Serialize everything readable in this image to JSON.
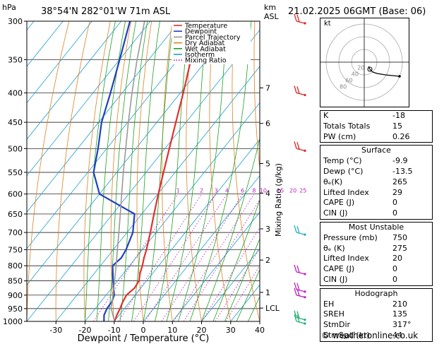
{
  "header": {
    "unit_left": "hPa",
    "location": "38°54'N 282°01'W 71m ASL",
    "unit_km": "km",
    "unit_asl": "ASL",
    "datetime": "21.02.2025 06GMT (Base: 06)"
  },
  "axes": {
    "xlabel": "Dewpoint / Temperature (°C)",
    "mixing_label": "Mixing Ratio (g/kg)"
  },
  "legend": [
    {
      "label": "Temperature",
      "color": "#e03030",
      "style": "solid"
    },
    {
      "label": "Dewpoint",
      "color": "#2040c0",
      "style": "solid"
    },
    {
      "label": "Parcel Trajectory",
      "color": "#999999",
      "style": "solid"
    },
    {
      "label": "Dry Adiabat",
      "color": "#e08020",
      "style": "solid"
    },
    {
      "label": "Wet Adiabat",
      "color": "#20a020",
      "style": "solid"
    },
    {
      "label": "Isotherm",
      "color": "#20a0d0",
      "style": "solid"
    },
    {
      "label": "Mixing Ratio",
      "color": "#c020c0",
      "style": "dotted"
    }
  ],
  "chart_data": {
    "type": "line",
    "title": "",
    "xlabel": "Dewpoint / Temperature (°C)",
    "ylabel": "hPa",
    "xlim": [
      -40,
      40
    ],
    "pressure_range": [
      1000,
      300
    ],
    "pressure_ticks": [
      300,
      350,
      400,
      450,
      500,
      550,
      600,
      650,
      700,
      750,
      800,
      850,
      900,
      950,
      1000
    ],
    "temp_ticks": [
      -30,
      -20,
      -10,
      0,
      10,
      20,
      30,
      40
    ],
    "km_ticks": [
      {
        "label": "7",
        "p": 392
      },
      {
        "label": "6",
        "p": 452
      },
      {
        "label": "5",
        "p": 531
      },
      {
        "label": "4",
        "p": 598
      },
      {
        "label": "3",
        "p": 690
      },
      {
        "label": "2",
        "p": 782
      },
      {
        "label": "1",
        "p": 890
      },
      {
        "label": "LCL",
        "p": 948
      }
    ],
    "mixing_ratio_labels": [
      "1",
      "2",
      "3",
      "4",
      "6",
      "8",
      "10",
      "15",
      "20",
      "25"
    ],
    "mixing_ratio_values": [
      1,
      2,
      3,
      4,
      6,
      8,
      10,
      15,
      20,
      25
    ],
    "series": [
      {
        "name": "Temperature",
        "color": "#e03030",
        "points": [
          [
            1000,
            -9.9
          ],
          [
            975,
            -10.8
          ],
          [
            950,
            -11.5
          ],
          [
            925,
            -12.4
          ],
          [
            900,
            -13.0
          ],
          [
            875,
            -12.2
          ],
          [
            850,
            -12.6
          ],
          [
            825,
            -14.3
          ],
          [
            800,
            -15.6
          ],
          [
            775,
            -17.2
          ],
          [
            750,
            -18.6
          ],
          [
            700,
            -22.0
          ],
          [
            650,
            -25.8
          ],
          [
            600,
            -29.8
          ],
          [
            550,
            -34.0
          ],
          [
            500,
            -38.5
          ],
          [
            450,
            -43.5
          ],
          [
            400,
            -49.0
          ],
          [
            350,
            -55.5
          ],
          [
            300,
            -62.5
          ]
        ]
      },
      {
        "name": "Dewpoint",
        "color": "#2040c0",
        "points": [
          [
            1000,
            -13.5
          ],
          [
            975,
            -15.2
          ],
          [
            950,
            -16.0
          ],
          [
            925,
            -16.2
          ],
          [
            900,
            -17.2
          ],
          [
            850,
            -21.5
          ],
          [
            800,
            -25.8
          ],
          [
            775,
            -25.0
          ],
          [
            750,
            -25.6
          ],
          [
            700,
            -28.0
          ],
          [
            650,
            -32.5
          ],
          [
            600,
            -50.0
          ],
          [
            550,
            -58.0
          ],
          [
            500,
            -63.0
          ],
          [
            450,
            -69.0
          ],
          [
            400,
            -74.0
          ],
          [
            350,
            -80.0
          ],
          [
            300,
            -87.0
          ]
        ]
      },
      {
        "name": "Parcel Trajectory",
        "color": "#999999",
        "points": [
          [
            1000,
            -9.9
          ],
          [
            948,
            -14.7
          ],
          [
            900,
            -17.6
          ],
          [
            850,
            -21.0
          ],
          [
            800,
            -24.6
          ],
          [
            750,
            -28.6
          ],
          [
            700,
            -32.8
          ],
          [
            650,
            -37.4
          ],
          [
            600,
            -42.4
          ],
          [
            550,
            -47.8
          ],
          [
            500,
            -53.5
          ],
          [
            450,
            -59.8
          ],
          [
            400,
            -66.6
          ],
          [
            350,
            -74.0
          ],
          [
            300,
            -82.0
          ]
        ]
      }
    ],
    "wind_barbs": [
      {
        "p": 1000,
        "color": "#20b070"
      },
      {
        "p": 985,
        "color": "#20b070"
      },
      {
        "p": 900,
        "color": "#c020c0"
      },
      {
        "p": 880,
        "color": "#c020c0"
      },
      {
        "p": 820,
        "color": "#c020c0"
      },
      {
        "p": 700,
        "color": "#20b0c0"
      },
      {
        "p": 500,
        "color": "#e02020"
      },
      {
        "p": 400,
        "color": "#e02020"
      },
      {
        "p": 300,
        "color": "#e02020"
      }
    ]
  },
  "hodograph": {
    "label": "kt",
    "ring_labels": [
      "20",
      "40",
      "60",
      "80"
    ]
  },
  "indices": {
    "top": [
      {
        "label": "K",
        "value": "-18"
      },
      {
        "label": "Totals Totals",
        "value": "15"
      },
      {
        "label": "PW (cm)",
        "value": "0.26"
      }
    ],
    "surface": {
      "title": "Surface",
      "rows": [
        {
          "label": "Temp (°C)",
          "value": "-9.9"
        },
        {
          "label": "Dewp (°C)",
          "value": "-13.5"
        },
        {
          "label": "θₑ(K)",
          "value": "265"
        },
        {
          "label": "Lifted Index",
          "value": "29"
        },
        {
          "label": "CAPE (J)",
          "value": "0"
        },
        {
          "label": "CIN (J)",
          "value": "0"
        }
      ]
    },
    "most_unstable": {
      "title": "Most Unstable",
      "rows": [
        {
          "label": "Pressure (mb)",
          "value": "750"
        },
        {
          "label": "θₑ (K)",
          "value": "275"
        },
        {
          "label": "Lifted Index",
          "value": "20"
        },
        {
          "label": "CAPE (J)",
          "value": "0"
        },
        {
          "label": "CIN (J)",
          "value": "0"
        }
      ]
    },
    "hodograph": {
      "title": "Hodograph",
      "rows": [
        {
          "label": "EH",
          "value": "210"
        },
        {
          "label": "SREH",
          "value": "135"
        },
        {
          "label": "StmDir",
          "value": "317°"
        },
        {
          "label": "StmSpd (kt)",
          "value": "44"
        }
      ]
    }
  },
  "credit": "© weatheronline.co.uk"
}
